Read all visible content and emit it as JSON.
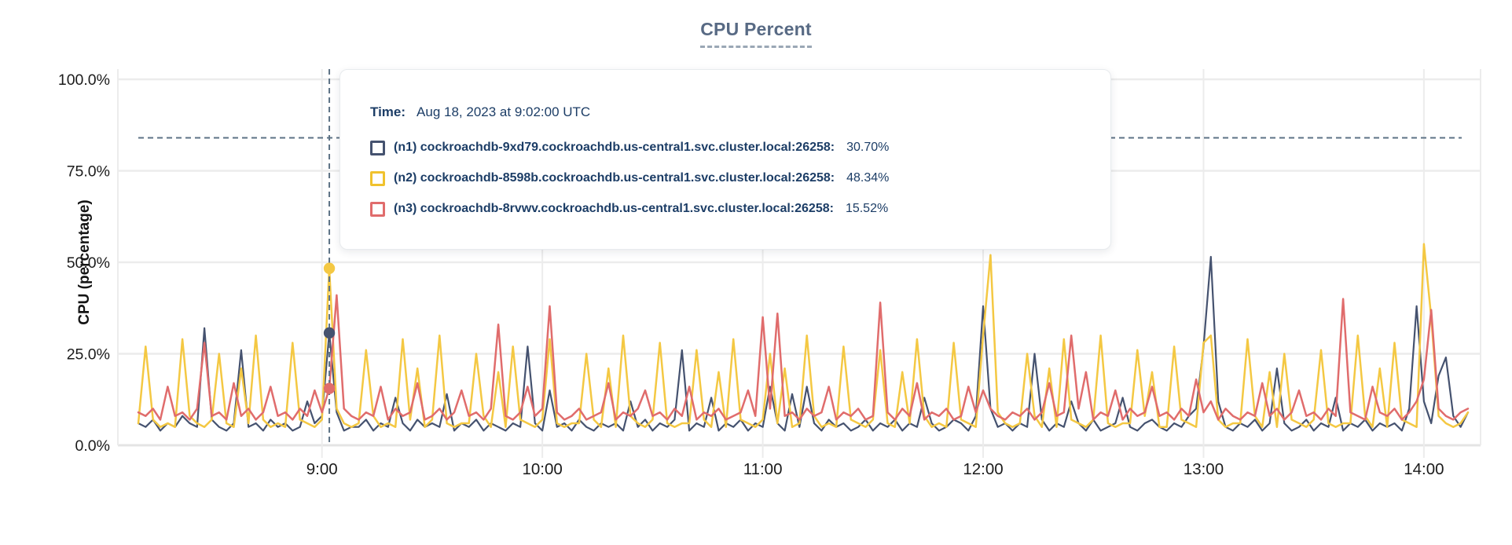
{
  "title": "CPU Percent",
  "y_axis": {
    "label": "CPU (percentage)",
    "ticks": [
      {
        "label": "0.0%",
        "value": 0
      },
      {
        "label": "25.0%",
        "value": 25
      },
      {
        "label": "50.0%",
        "value": 50
      },
      {
        "label": "75.0%",
        "value": 75
      },
      {
        "label": "100.0%",
        "value": 100
      }
    ]
  },
  "x_axis": {
    "ticks": [
      {
        "label": "9:00",
        "minute": 50
      },
      {
        "label": "10:00",
        "minute": 110
      },
      {
        "label": "11:00",
        "minute": 170
      },
      {
        "label": "12:00",
        "minute": 230
      },
      {
        "label": "13:00",
        "minute": 290
      },
      {
        "label": "14:00",
        "minute": 350
      }
    ]
  },
  "tooltip": {
    "time_label": "Time:",
    "time_value": "Aug 18, 2023 at 9:02:00 UTC",
    "rows": [
      {
        "id": "n1",
        "label": "(n1) cockroachdb-9xd79.cockroachdb.us-central1.svc.cluster.local:26258:",
        "value": "30.70%",
        "color": "#45526f"
      },
      {
        "id": "n2",
        "label": "(n2) cockroachdb-8598b.cockroachdb.us-central1.svc.cluster.local:26258:",
        "value": "48.34%",
        "color": "#f0c22e"
      },
      {
        "id": "n3",
        "label": "(n3) cockroachdb-8rvwv.cockroachdb.us-central1.svc.cluster.local:26258:",
        "value": "15.52%",
        "color": "#e06c6c"
      }
    ]
  },
  "colors": {
    "n1_line": "#45526f",
    "n2_line": "#f4c843",
    "n3_line": "#e06c6c",
    "guide_dashed": "#5d7285",
    "gridline": "#ececec",
    "zero_line": "#e4e4e4",
    "axis_text": "#1b1b1b",
    "title_text": "#586a84",
    "tooltip_text": "#1c3d66"
  },
  "chart_data": {
    "type": "line",
    "title": "CPU Percent",
    "ylabel": "CPU (percentage)",
    "ylim": [
      0,
      100
    ],
    "grid": true,
    "legend_position": "tooltip-overlay",
    "x_start_minute": 0,
    "x_step_minutes": 2,
    "x_axis_note": "minute 50 = 9:00, minute 350 = 14:00; data spans ~8:10 to ~14:12 UTC",
    "threshold_line": {
      "value": 84,
      "style": "dashed"
    },
    "hover": {
      "minute": 52,
      "time": "Aug 18, 2023 at 9:02:00 UTC",
      "values": {
        "n1": 30.7,
        "n2": 48.34,
        "n3": 15.52
      }
    },
    "series": [
      {
        "id": "n1",
        "name": "(n1) cockroachdb-9xd79.cockroachdb.us-central1.svc.cluster.local:26258",
        "color": "#45526f",
        "values": [
          6,
          5,
          7,
          4,
          6,
          5,
          8,
          6,
          5,
          32,
          7,
          5,
          4,
          6,
          26,
          5,
          6,
          4,
          7,
          5,
          6,
          4,
          5,
          12,
          6,
          8,
          30.7,
          9,
          4,
          5,
          5,
          7,
          4,
          6,
          5,
          13,
          6,
          4,
          7,
          5,
          6,
          5,
          14,
          4,
          6,
          5,
          7,
          4,
          6,
          5,
          4,
          6,
          5,
          27,
          6,
          4,
          15,
          5,
          6,
          4,
          7,
          5,
          4,
          6,
          5,
          6,
          4,
          12,
          5,
          7,
          4,
          6,
          5,
          7,
          26,
          4,
          6,
          5,
          13,
          4,
          6,
          5,
          7,
          4,
          6,
          5,
          16,
          6,
          4,
          14,
          5,
          16,
          6,
          4,
          7,
          5,
          6,
          4,
          5,
          7,
          4,
          6,
          5,
          7,
          4,
          6,
          5,
          13,
          6,
          4,
          5,
          7,
          6,
          4,
          8,
          38,
          10,
          5,
          6,
          4,
          6,
          5,
          25,
          7,
          4,
          6,
          5,
          12,
          6,
          4,
          7,
          4,
          5,
          6,
          13,
          5,
          4,
          6,
          7,
          5,
          4,
          6,
          5,
          8,
          10,
          27,
          51.5,
          12,
          5,
          4,
          6,
          5,
          7,
          4,
          6,
          21,
          6,
          4,
          5,
          7,
          4,
          6,
          5,
          13,
          4,
          6,
          5,
          7,
          4,
          6,
          5,
          6,
          4,
          10,
          38,
          12,
          6,
          19,
          24,
          8,
          5,
          9
        ]
      },
      {
        "id": "n2",
        "name": "(n2) cockroachdb-8598b.cockroachdb.us-central1.svc.cluster.local:26258",
        "color": "#f4c843",
        "values": [
          6,
          27,
          7,
          5,
          6,
          5,
          29,
          8,
          6,
          5,
          7,
          25,
          6,
          5,
          21,
          6,
          30,
          7,
          5,
          6,
          5,
          28,
          7,
          6,
          5,
          7,
          48.3,
          10,
          6,
          5,
          6,
          26,
          8,
          5,
          6,
          5,
          29,
          7,
          21,
          5,
          7,
          30,
          6,
          5,
          6,
          6,
          25,
          8,
          5,
          20,
          5,
          27,
          7,
          6,
          5,
          7,
          29,
          6,
          5,
          6,
          6,
          25,
          7,
          5,
          21,
          5,
          30,
          8,
          6,
          5,
          7,
          28,
          6,
          5,
          6,
          6,
          26,
          7,
          5,
          20,
          5,
          29,
          7,
          6,
          5,
          7,
          25,
          6,
          21,
          5,
          6,
          30,
          8,
          5,
          6,
          5,
          27,
          7,
          6,
          5,
          7,
          26,
          6,
          5,
          20,
          6,
          29,
          8,
          5,
          6,
          5,
          28,
          7,
          6,
          5,
          30,
          52,
          9,
          6,
          5,
          6,
          25,
          8,
          5,
          21,
          5,
          29,
          7,
          6,
          5,
          7,
          30,
          6,
          5,
          6,
          6,
          26,
          8,
          20,
          5,
          5,
          27,
          7,
          6,
          5,
          28,
          30,
          7,
          5,
          6,
          6,
          29,
          8,
          5,
          20,
          5,
          25,
          7,
          6,
          5,
          7,
          26,
          6,
          5,
          6,
          6,
          30,
          8,
          5,
          21,
          5,
          28,
          7,
          6,
          5,
          55,
          35,
          8,
          6,
          5,
          6,
          9
        ]
      },
      {
        "id": "n3",
        "name": "(n3) cockroachdb-8rvwv.cockroachdb.us-central1.svc.cluster.local:26258",
        "color": "#e06c6c",
        "values": [
          9,
          8,
          10,
          7,
          16,
          8,
          9,
          7,
          10,
          28,
          8,
          9,
          7,
          17,
          8,
          10,
          7,
          9,
          16,
          8,
          9,
          7,
          10,
          8,
          15,
          9,
          15.5,
          41,
          10,
          8,
          7,
          9,
          8,
          16,
          7,
          10,
          8,
          9,
          17,
          7,
          8,
          10,
          7,
          9,
          15,
          8,
          9,
          7,
          10,
          33,
          8,
          7,
          9,
          16,
          8,
          10,
          38,
          9,
          7,
          8,
          10,
          7,
          8,
          9,
          17,
          7,
          9,
          8,
          10,
          15,
          8,
          9,
          7,
          10,
          8,
          16,
          7,
          9,
          8,
          10,
          7,
          8,
          9,
          15,
          8,
          35,
          10,
          36,
          8,
          9,
          7,
          10,
          8,
          9,
          16,
          7,
          9,
          8,
          10,
          7,
          8,
          39,
          9,
          7,
          10,
          8,
          17,
          7,
          9,
          8,
          10,
          7,
          8,
          16,
          9,
          15,
          10,
          8,
          7,
          9,
          8,
          10,
          7,
          9,
          17,
          8,
          9,
          30,
          10,
          20,
          7,
          9,
          8,
          15,
          7,
          10,
          8,
          9,
          16,
          8,
          9,
          7,
          10,
          8,
          18,
          9,
          12,
          7,
          10,
          8,
          7,
          9,
          8,
          17,
          8,
          10,
          7,
          9,
          15,
          8,
          9,
          7,
          10,
          8,
          40,
          9,
          8,
          7,
          16,
          9,
          8,
          10,
          7,
          9,
          12,
          18,
          37,
          10,
          8,
          7,
          9,
          10
        ]
      }
    ]
  }
}
